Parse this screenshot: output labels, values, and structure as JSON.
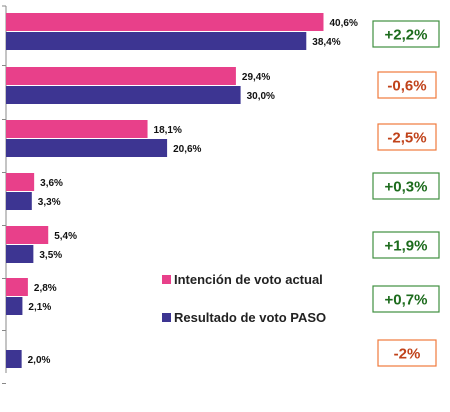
{
  "chart_data": {
    "type": "bar",
    "orientation": "horizontal",
    "xlim": [
      0,
      45
    ],
    "series": [
      {
        "name": "Intención de voto actual",
        "color": "#e8408a",
        "values": [
          40.6,
          29.4,
          18.1,
          3.6,
          5.4,
          2.8,
          null
        ],
        "labels": [
          "40,6%",
          "29,4%",
          "18,1%",
          "3,6%",
          "5,4%",
          "2,8%",
          ""
        ]
      },
      {
        "name": "Resultado de voto PASO",
        "color": "#3d3592",
        "values": [
          38.4,
          30.0,
          20.6,
          3.3,
          3.5,
          2.1,
          2.0
        ],
        "labels": [
          "38,4%",
          "30,0%",
          "20,6%",
          "3,3%",
          "3,5%",
          "2,1%",
          "2,0%"
        ]
      }
    ],
    "differences": [
      {
        "label": "+2,2%",
        "sign": "positive"
      },
      {
        "label": "-0,6%",
        "sign": "negative"
      },
      {
        "label": "-2,5%",
        "sign": "negative"
      },
      {
        "label": "+0,3%",
        "sign": "positive"
      },
      {
        "label": "+1,9%",
        "sign": "positive"
      },
      {
        "label": "+0,7%",
        "sign": "positive"
      },
      {
        "label": "-2%",
        "sign": "negative"
      }
    ],
    "difference_colors": {
      "positive_border": "#3f8f3f",
      "positive_text": "#1c6b1c",
      "negative_border": "#f07a3c",
      "negative_text": "#c0421a"
    },
    "legend_position": "center-right",
    "grid": false
  }
}
